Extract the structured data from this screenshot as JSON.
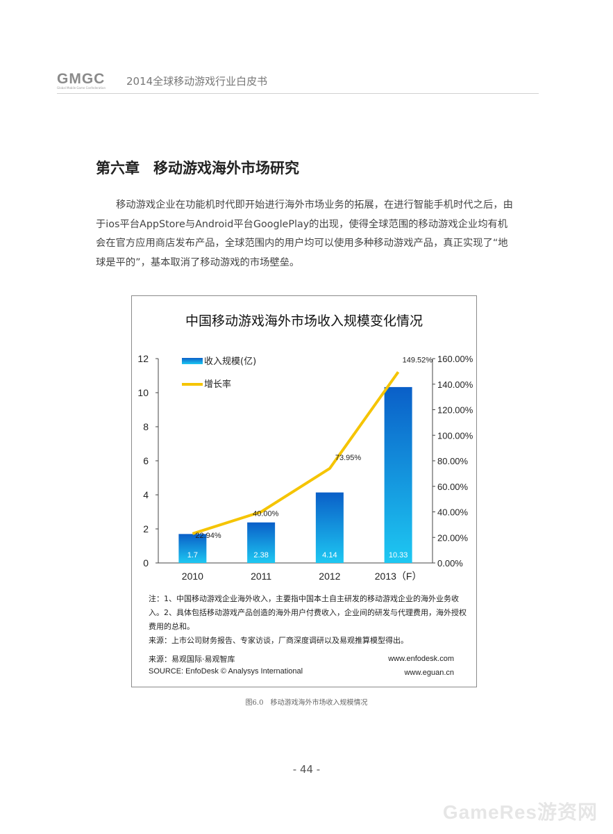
{
  "header": {
    "logo_text": "GMGC",
    "logo_sub": "Global Mobile Game Confederation",
    "title": "2014全球移动游戏行业白皮书"
  },
  "chapter": {
    "number": "第六章",
    "title": "移动游戏海外市场研究"
  },
  "paragraph": "移动游戏企业在功能机时代即开始进行海外市场业务的拓展，在进行智能手机时代之后，由于ios平台AppStore与Android平台GooglePlay的出现，使得全球范围的移动游戏企业均有机会在官方应用商店发布产品，全球范围内的用户均可以使用多种移动游戏产品，真正实现了“地球是平的”，基本取消了移动游戏的市场壁垒。",
  "figure": {
    "note": "注：1、中国移动游戏企业海外收入，主要指中国本土自主研发的移动游戏企业的海外业务收入。2、具体包括移动游戏产品创造的海外用户付费收入，企业间的研发与代理费用，海外授权费用的总和。",
    "source_note": "来源：上市公司财务报告、专家访谈，厂商深度调研以及易观推算模型得出。",
    "source_cn": "来源：易观国际·易观智库",
    "source_en": "SOURCE: EnfoDesk © Analysys International",
    "url1": "www.enfodesk.com",
    "url2": "www.eguan.cn",
    "caption": "图6.0　移动游戏海外市场收入规模情况"
  },
  "chart_data": {
    "type": "bar",
    "title": "中国移动游戏海外市场收入规模变化情况",
    "categories": [
      "2010",
      "2011",
      "2012",
      "2013（F）"
    ],
    "series": [
      {
        "name": "收入规模(亿)",
        "type": "bar",
        "axis": "left",
        "color": "#1a8fe0",
        "values": [
          1.7,
          2.38,
          4.14,
          10.33
        ],
        "labels": [
          "1.7",
          "2.38",
          "4.14",
          "10.33"
        ]
      },
      {
        "name": "增长率",
        "type": "line",
        "axis": "right",
        "color": "#f5c400",
        "values": [
          22.94,
          40.0,
          73.95,
          149.52
        ],
        "labels": [
          "22.94%",
          "40.00%",
          "73.95%",
          "149.52%"
        ]
      }
    ],
    "ylim_left": [
      0,
      12
    ],
    "yticks_left": [
      "0",
      "2",
      "4",
      "6",
      "8",
      "10",
      "12"
    ],
    "ylim_right": [
      0,
      160
    ],
    "yticks_right": [
      "0.00%",
      "20.00%",
      "40.00%",
      "60.00%",
      "80.00%",
      "100.00%",
      "120.00%",
      "140.00%",
      "160.00%"
    ],
    "legend": "top-left",
    "grid": false
  },
  "page_number": "- 44 -",
  "watermark": "GameRes游资网"
}
